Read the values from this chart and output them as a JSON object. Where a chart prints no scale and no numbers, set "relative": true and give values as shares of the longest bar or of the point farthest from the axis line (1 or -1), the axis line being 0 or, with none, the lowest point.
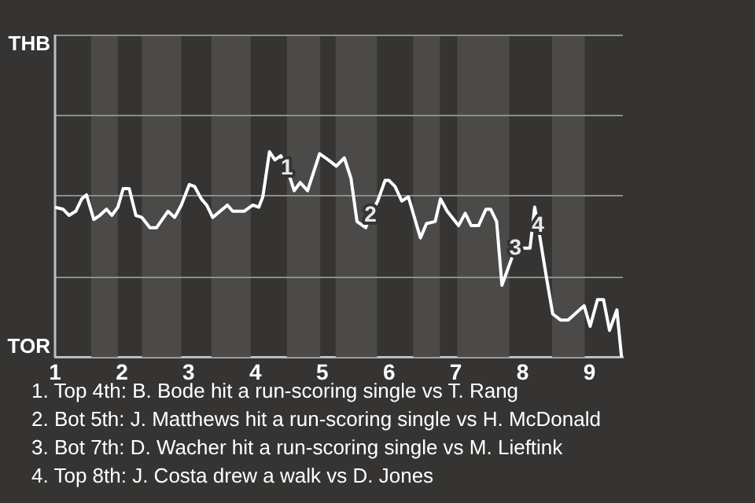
{
  "chart_data": {
    "type": "line",
    "relative": true,
    "x": [
      1.0,
      1.12,
      1.21,
      1.31,
      1.4,
      1.47,
      1.58,
      1.67,
      1.77,
      1.85,
      1.94,
      2.02,
      2.11,
      2.21,
      2.3,
      2.42,
      2.52,
      2.69,
      2.79,
      2.89,
      3.01,
      3.09,
      3.19,
      3.27,
      3.36,
      3.58,
      3.66,
      3.83,
      3.96,
      4.05,
      4.11,
      4.21,
      4.29,
      4.38,
      4.47,
      4.58,
      4.67,
      4.78,
      4.96,
      5.09,
      5.21,
      5.33,
      5.43,
      5.52,
      5.65,
      5.72,
      5.83,
      5.94,
      6.0,
      6.09,
      6.19,
      6.29,
      6.37,
      6.47,
      6.56,
      6.69,
      6.77,
      6.87,
      7.04,
      7.14,
      7.23,
      7.34,
      7.45,
      7.52,
      7.61,
      7.69,
      7.89,
      8.11,
      8.18,
      8.23,
      8.36,
      8.45,
      8.57,
      8.68,
      8.92,
      9.01,
      9.12,
      9.21,
      9.3,
      9.41,
      9.48
    ],
    "series": [
      {
        "color": "#ffffff",
        "values": [
          0.73,
          0.72,
          0.69,
          0.71,
          0.77,
          0.79,
          0.67,
          0.69,
          0.72,
          0.69,
          0.73,
          0.82,
          0.82,
          0.69,
          0.68,
          0.63,
          0.63,
          0.71,
          0.68,
          0.74,
          0.84,
          0.83,
          0.77,
          0.74,
          0.68,
          0.74,
          0.71,
          0.71,
          0.74,
          0.73,
          0.78,
          1,
          0.96,
          0.98,
          0.92,
          0.81,
          0.85,
          0.81,
          0.99,
          0.96,
          0.93,
          0.97,
          0.87,
          0.66,
          0.63,
          0.69,
          0.76,
          0.86,
          0.86,
          0.83,
          0.76,
          0.78,
          0.69,
          0.58,
          0.65,
          0.66,
          0.77,
          0.71,
          0.64,
          0.7,
          0.64,
          0.64,
          0.72,
          0.72,
          0.66,
          0.35,
          0.53,
          0.53,
          0.73,
          0.64,
          0.38,
          0.21,
          0.18,
          0.18,
          0.25,
          0.15,
          0.28,
          0.28,
          0.13,
          0.23,
          0
        ]
      }
    ],
    "xlim": [
      1,
      9.5
    ],
    "xticks": [
      1,
      2,
      3,
      4,
      5,
      6,
      7,
      8,
      9
    ],
    "marker": "none",
    "line_style": "solid",
    "ref_lines": [
      {
        "axis": "y",
        "value": 0.39,
        "color": "#8c8c8a"
      },
      {
        "axis": "y",
        "value": 0.79,
        "color": "#8c8c8a"
      },
      {
        "axis": "y",
        "value": 1.18,
        "color": "#8c8c8a"
      },
      {
        "axis": "y",
        "value": 1.57,
        "color": "#8c8c8a"
      }
    ],
    "bands": [
      {
        "axis": "x",
        "from": 1.54,
        "to": 1.94,
        "color": "#4b4a48"
      },
      {
        "axis": "x",
        "from": 2.3,
        "to": 2.89,
        "color": "#4b4a48"
      },
      {
        "axis": "x",
        "from": 3.34,
        "to": 3.93,
        "color": "#4b4a48"
      },
      {
        "axis": "x",
        "from": 4.47,
        "to": 4.97,
        "color": "#4b4a48"
      },
      {
        "axis": "x",
        "from": 5.2,
        "to": 5.82,
        "color": "#4b4a48"
      },
      {
        "axis": "x",
        "from": 6.36,
        "to": 6.76,
        "color": "#4b4a48"
      },
      {
        "axis": "x",
        "from": 7.02,
        "to": 7.8,
        "color": "#4b4a48"
      },
      {
        "axis": "x",
        "from": 8.44,
        "to": 8.93,
        "color": "#4b4a48"
      }
    ],
    "annotations": [
      "THB",
      "TOR",
      {
        "text": "1",
        "x": 4.47,
        "y": 0.92
      },
      {
        "text": "2",
        "x": 5.72,
        "y": 0.69
      },
      {
        "text": "3",
        "x": 7.89,
        "y": 0.53
      },
      {
        "text": "4",
        "x": 8.23,
        "y": 0.64
      },
      "1. Top 4th: B. Bode hit a run-scoring single vs T. Rang",
      "2. Bot 5th: J. Matthews hit a run-scoring single vs H. McDonald",
      "3. Bot 7th: D. Wacher hit a run-scoring single vs M. Lieftink",
      "4. Top 8th: J. Costa drew a walk vs D. Jones"
    ]
  }
}
